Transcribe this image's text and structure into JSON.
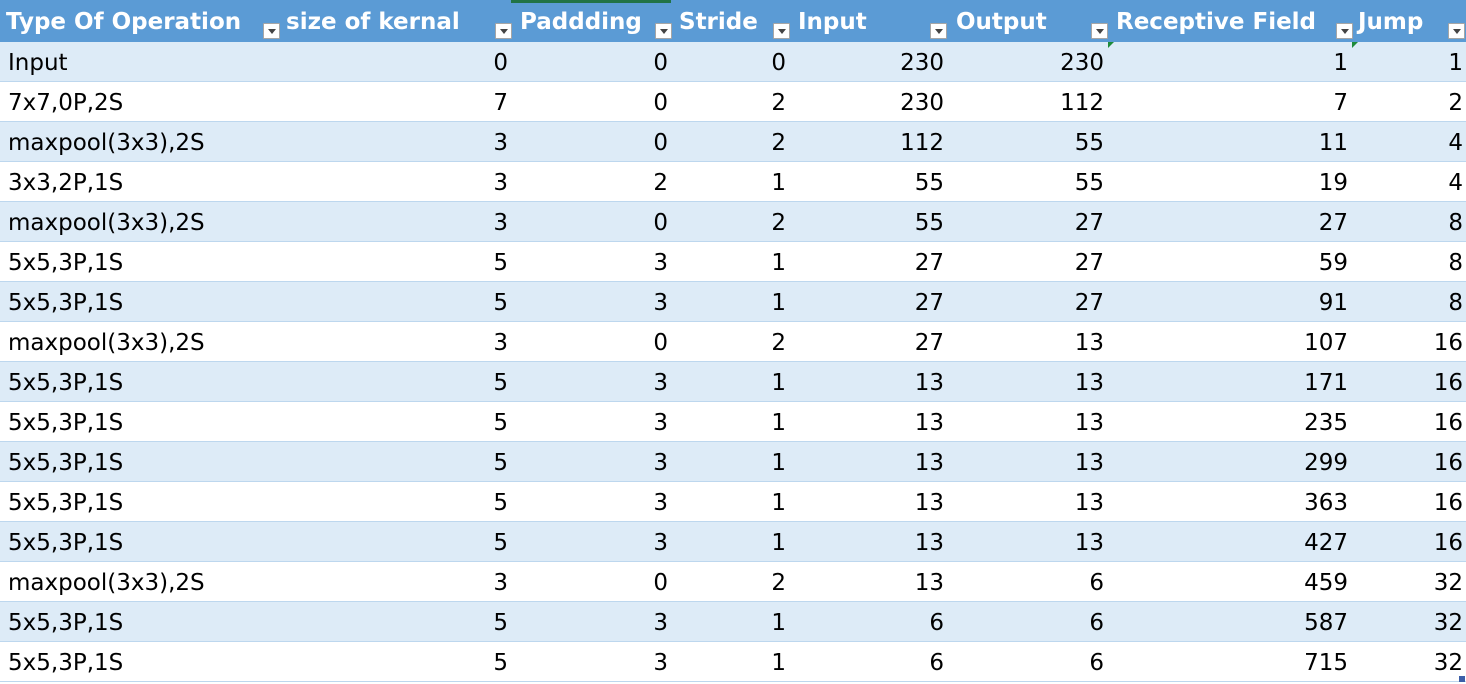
{
  "table": {
    "headers": [
      "Type Of Operation",
      "size of kernal",
      "Paddding",
      "Stride",
      "Input",
      "Output",
      "Receptive Field",
      "Jump"
    ],
    "rows": [
      [
        "Input",
        "0",
        "0",
        "0",
        "230",
        "230",
        "1",
        "1"
      ],
      [
        "7x7,0P,2S",
        "7",
        "0",
        "2",
        "230",
        "112",
        "7",
        "2"
      ],
      [
        "maxpool(3x3),2S",
        "3",
        "0",
        "2",
        "112",
        "55",
        "11",
        "4"
      ],
      [
        "3x3,2P,1S",
        "3",
        "2",
        "1",
        "55",
        "55",
        "19",
        "4"
      ],
      [
        "maxpool(3x3),2S",
        "3",
        "0",
        "2",
        "55",
        "27",
        "27",
        "8"
      ],
      [
        "5x5,3P,1S",
        "5",
        "3",
        "1",
        "27",
        "27",
        "59",
        "8"
      ],
      [
        "5x5,3P,1S",
        "5",
        "3",
        "1",
        "27",
        "27",
        "91",
        "8"
      ],
      [
        "maxpool(3x3),2S",
        "3",
        "0",
        "2",
        "27",
        "13",
        "107",
        "16"
      ],
      [
        "5x5,3P,1S",
        "5",
        "3",
        "1",
        "13",
        "13",
        "171",
        "16"
      ],
      [
        "5x5,3P,1S",
        "5",
        "3",
        "1",
        "13",
        "13",
        "235",
        "16"
      ],
      [
        "5x5,3P,1S",
        "5",
        "3",
        "1",
        "13",
        "13",
        "299",
        "16"
      ],
      [
        "5x5,3P,1S",
        "5",
        "3",
        "1",
        "13",
        "13",
        "363",
        "16"
      ],
      [
        "5x5,3P,1S",
        "5",
        "3",
        "1",
        "13",
        "13",
        "427",
        "16"
      ],
      [
        "maxpool(3x3),2S",
        "3",
        "0",
        "2",
        "13",
        "6",
        "459",
        "32"
      ],
      [
        "5x5,3P,1S",
        "5",
        "3",
        "1",
        "6",
        "6",
        "587",
        "32"
      ],
      [
        "5x5,3P,1S",
        "5",
        "3",
        "1",
        "6",
        "6",
        "715",
        "32"
      ]
    ]
  },
  "colors": {
    "header_bg": "#5b9bd5",
    "band_bg": "#ddebf7",
    "row_border": "#bdd7ee",
    "selection": "#217346"
  },
  "icons": {
    "filter": "filter-dropdown-icon"
  }
}
